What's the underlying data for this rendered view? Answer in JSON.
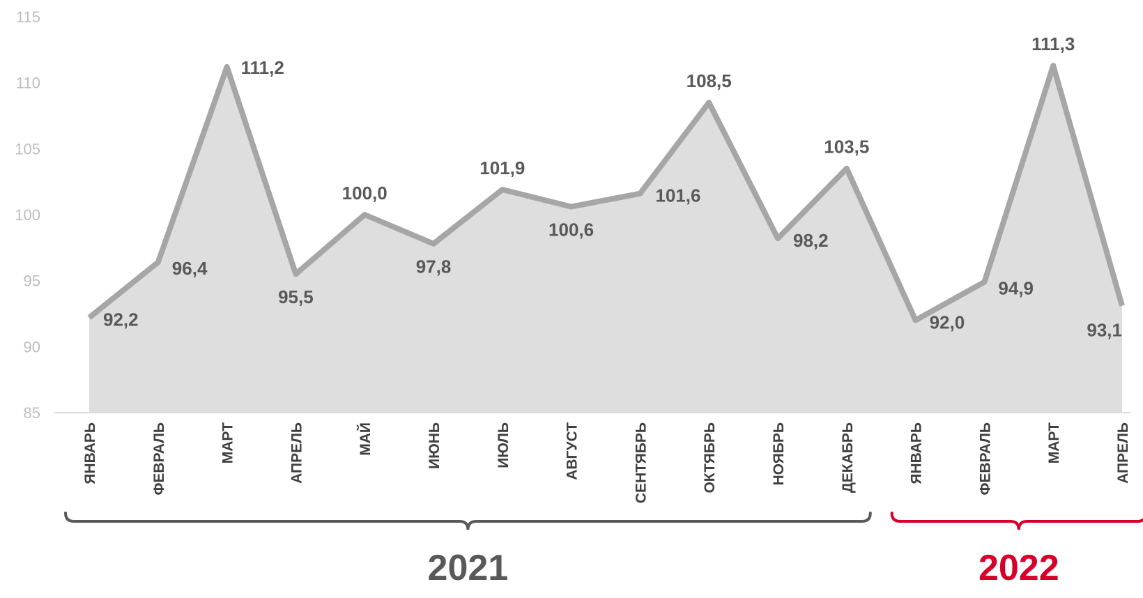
{
  "chart_data": {
    "type": "area",
    "categories": [
      "ЯНВАРЬ",
      "ФЕВРАЛЬ",
      "МАРТ",
      "АПРЕЛЬ",
      "МАЙ",
      "ИЮНЬ",
      "ИЮЛЬ",
      "АВГУСТ",
      "СЕНТЯБРЬ",
      "ОКТЯБРЬ",
      "НОЯБРЬ",
      "ДЕКАБРЬ",
      "ЯНВАРЬ",
      "ФЕВРАЛЬ",
      "МАРТ",
      "АПРЕЛЬ"
    ],
    "values": [
      92.2,
      96.4,
      111.2,
      95.5,
      100.0,
      97.8,
      101.9,
      100.6,
      101.6,
      108.5,
      98.2,
      103.5,
      92.0,
      94.9,
      111.3,
      93.1
    ],
    "data_labels": [
      "92,2",
      "96,4",
      "111,2",
      "95,5",
      "100,0",
      "97,8",
      "101,9",
      "100,6",
      "101,6",
      "108,5",
      "98,2",
      "103,5",
      "92,0",
      "94,9",
      "111,3",
      "93,1"
    ],
    "ylim": [
      85,
      115
    ],
    "yticks": [
      85,
      90,
      95,
      100,
      105,
      110,
      115
    ],
    "grid": false,
    "groups": [
      {
        "label": "2021",
        "start": 0,
        "end": 11,
        "color": "#595959"
      },
      {
        "label": "2022",
        "start": 12,
        "end": 15,
        "color": "#d6002a"
      }
    ],
    "colors": {
      "line": "#a6a6a6",
      "fill": "#dedede",
      "axis": "#d9d9d9"
    }
  }
}
